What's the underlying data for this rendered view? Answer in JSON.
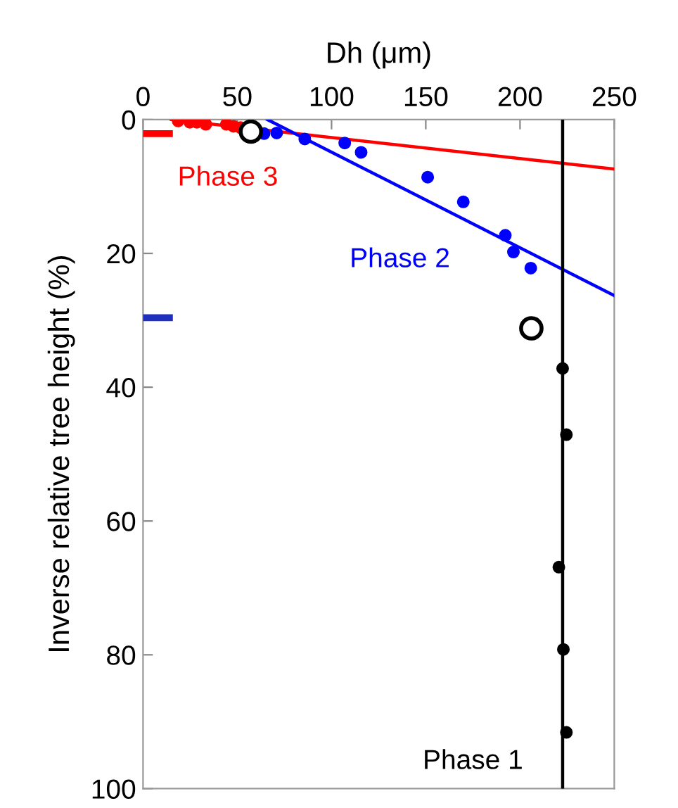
{
  "chart_data": {
    "type": "scatter",
    "xlabel": "Dh (μm)",
    "ylabel": "Inverse relative tree height (%)",
    "xlim": [
      0,
      250
    ],
    "ylim": [
      100,
      0
    ],
    "xticks": [
      0,
      50,
      100,
      150,
      200,
      250
    ],
    "yticks": [
      0,
      20,
      40,
      60,
      80,
      100
    ],
    "grid": false,
    "marker": "circle",
    "series": [
      {
        "name": "Phase 3",
        "color": "#ff0000",
        "x": [
          18.6,
          24.8,
          28.5,
          33.3,
          44.2,
          48,
          51.7
        ],
        "values": [
          0.2,
          0.4,
          0.4,
          0.7,
          0.7,
          1.0,
          1.2
        ]
      },
      {
        "type": "line",
        "marker": "none",
        "color": "#ff0000",
        "x": [
          15,
          250
        ],
        "values": [
          0,
          7.4
        ]
      },
      {
        "name": "Phase 2",
        "color": "#0000ff",
        "x": [
          64.2,
          70.9,
          85.8,
          107,
          115.7,
          151,
          169.9,
          192.2,
          196.5,
          205.7
        ],
        "values": [
          2.1,
          2.0,
          2.9,
          3.5,
          4.9,
          8.6,
          12.3,
          17.3,
          19.8,
          22.2
        ]
      },
      {
        "type": "line",
        "marker": "none",
        "color": "#0000ff",
        "x": [
          66,
          250
        ],
        "values": [
          0,
          26.3
        ]
      },
      {
        "name": "Phase 1",
        "color": "#000000",
        "x": [
          222.6,
          224.6,
          220.6,
          223,
          224.6
        ],
        "values": [
          37.2,
          47.1,
          66.9,
          79.2,
          91.6
        ]
      },
      {
        "type": "line",
        "marker": "none",
        "color": "#000000",
        "x": [
          222.6,
          222.6
        ],
        "values": [
          0,
          100
        ]
      },
      {
        "color": "#ffffff",
        "x": [
          57.2,
          206
        ],
        "values": [
          1.8,
          31.2
        ]
      },
      {
        "type": "line",
        "marker": "none",
        "color": "#ff0000",
        "x": [
          0,
          14
        ],
        "values": [
          2.1,
          2.1
        ]
      },
      {
        "type": "line",
        "marker": "none",
        "color": "#1f2fbf",
        "x": [
          0,
          14
        ],
        "values": [
          29.6,
          29.6
        ]
      }
    ]
  }
}
